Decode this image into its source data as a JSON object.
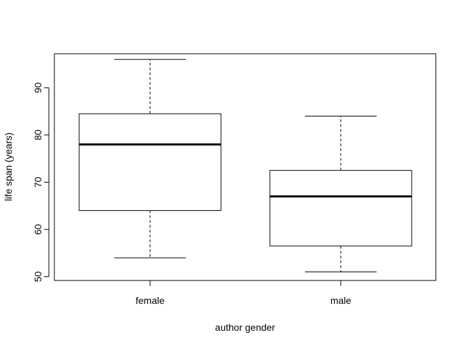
{
  "chart_data": {
    "type": "boxplot",
    "title": "",
    "xlabel": "author gender",
    "ylabel": "life span (years)",
    "ylim": [
      49.2,
      97.2
    ],
    "yticks": [
      50,
      60,
      70,
      80,
      90
    ],
    "grid": false,
    "legend": "none",
    "categories": [
      "female",
      "male"
    ],
    "boxes": [
      {
        "category": "female",
        "whisker_low": 54,
        "q1": 64,
        "median": 78,
        "q3": 84.5,
        "whisker_high": 96
      },
      {
        "category": "male",
        "whisker_low": 51,
        "q1": 56.5,
        "median": 67,
        "q3": 72.5,
        "whisker_high": 84
      }
    ],
    "colors": {
      "box_stroke": "#000000",
      "box_fill": "#ffffff",
      "median_stroke": "#000000"
    }
  }
}
